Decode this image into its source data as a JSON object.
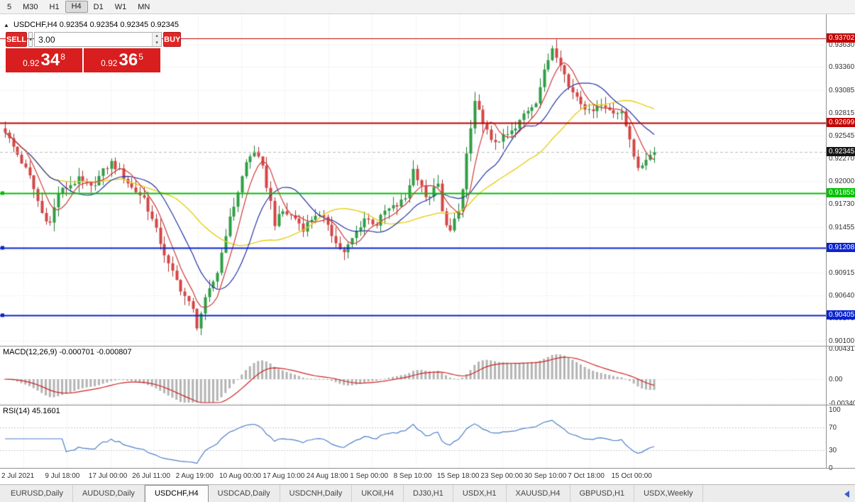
{
  "toolbar": {
    "items": [
      "5",
      "M30",
      "H1",
      "H4",
      "D1",
      "W1",
      "MN"
    ],
    "active": "H4"
  },
  "icons": {
    "chevron_down": "▾",
    "chevron_up": "▴"
  },
  "chart_header": {
    "collapse_icon": "▲",
    "title": "USDCHF,H4 0.92354 0.92354 0.92345 0.92345"
  },
  "trade_widget": {
    "sell_label": "SELL",
    "buy_label": "BUY",
    "volume": "3.00",
    "sell_price": {
      "base": "0.92",
      "big": "34",
      "sup": "8"
    },
    "buy_price": {
      "base": "0.92",
      "big": "36",
      "sup": "5"
    }
  },
  "chart_data": {
    "type": "candlestick",
    "symbol": "USDCHF",
    "timeframe": "H4",
    "ohlc_display": [
      "0.92354",
      "0.92354",
      "0.92345",
      "0.92345"
    ],
    "current_price": 0.92345,
    "current_price_label": "0.92345",
    "y_range": [
      0.9004,
      0.9399
    ],
    "y_ticks": [
      "0.93630",
      "0.93360",
      "0.93085",
      "0.92815",
      "0.92545",
      "0.92270",
      "0.92000",
      "0.91730",
      "0.91455",
      "0.91185",
      "0.90915",
      "0.90640",
      "0.90370",
      "0.90100"
    ],
    "x_ticks": [
      "2 Jul 2021",
      "9 Jul 18:00",
      "17 Jul 00:00",
      "26 Jul 11:00",
      "2 Aug 19:00",
      "10 Aug 00:00",
      "17 Aug 10:00",
      "24 Aug 18:00",
      "1 Sep 00:00",
      "8 Sep 10:00",
      "15 Sep 18:00",
      "23 Sep 00:00",
      "30 Sep 10:00",
      "7 Oct 18:00",
      "15 Oct 00:00"
    ],
    "horizontal_lines": [
      {
        "label": "0.93702",
        "price": 0.93702,
        "color": "#c00000",
        "width": 1,
        "marker": false
      },
      {
        "label": "0.92699",
        "price": 0.92699,
        "color": "#c00000",
        "width": 2,
        "marker": false
      },
      {
        "label": "0.91855",
        "price": 0.91855,
        "color": "#00c000",
        "width": 2,
        "marker": true
      },
      {
        "label": "0.91208",
        "price": 0.91208,
        "color": "#0b24cc",
        "width": 2,
        "marker": true
      },
      {
        "label": "0.90405",
        "price": 0.90405,
        "color": "#0b24cc",
        "width": 2,
        "marker": true
      }
    ],
    "candle_count": 160,
    "wick_amplitude": 0.0011,
    "close_anchors": [
      [
        0,
        0.9258
      ],
      [
        3,
        0.9232
      ],
      [
        6,
        0.9205
      ],
      [
        9,
        0.9162
      ],
      [
        11,
        0.915
      ],
      [
        13,
        0.9186
      ],
      [
        16,
        0.9196
      ],
      [
        18,
        0.9202
      ],
      [
        21,
        0.9192
      ],
      [
        24,
        0.9212
      ],
      [
        26,
        0.9222
      ],
      [
        28,
        0.9212
      ],
      [
        31,
        0.9192
      ],
      [
        34,
        0.918
      ],
      [
        37,
        0.9141
      ],
      [
        40,
        0.91
      ],
      [
        43,
        0.9072
      ],
      [
        46,
        0.9046
      ],
      [
        47,
        0.9028
      ],
      [
        49,
        0.9058
      ],
      [
        52,
        0.9092
      ],
      [
        54,
        0.9138
      ],
      [
        57,
        0.9188
      ],
      [
        59,
        0.9222
      ],
      [
        61,
        0.9237
      ],
      [
        63,
        0.9215
      ],
      [
        65,
        0.9175
      ],
      [
        66,
        0.915
      ],
      [
        68,
        0.9164
      ],
      [
        71,
        0.9156
      ],
      [
        73,
        0.9144
      ],
      [
        76,
        0.9161
      ],
      [
        79,
        0.915
      ],
      [
        81,
        0.9126
      ],
      [
        83,
        0.9114
      ],
      [
        86,
        0.914
      ],
      [
        88,
        0.9156
      ],
      [
        91,
        0.9149
      ],
      [
        93,
        0.9164
      ],
      [
        96,
        0.9171
      ],
      [
        98,
        0.918
      ],
      [
        100,
        0.9214
      ],
      [
        102,
        0.9196
      ],
      [
        103,
        0.9178
      ],
      [
        106,
        0.9196
      ],
      [
        107,
        0.9162
      ],
      [
        109,
        0.914
      ],
      [
        111,
        0.9164
      ],
      [
        112,
        0.919
      ],
      [
        113,
        0.9232
      ],
      [
        115,
        0.9292
      ],
      [
        117,
        0.9272
      ],
      [
        119,
        0.9246
      ],
      [
        122,
        0.9252
      ],
      [
        125,
        0.9262
      ],
      [
        127,
        0.928
      ],
      [
        130,
        0.9296
      ],
      [
        132,
        0.933
      ],
      [
        134,
        0.936
      ],
      [
        136,
        0.9342
      ],
      [
        138,
        0.9312
      ],
      [
        140,
        0.9302
      ],
      [
        143,
        0.9282
      ],
      [
        145,
        0.9292
      ],
      [
        148,
        0.9286
      ],
      [
        151,
        0.928
      ],
      [
        153,
        0.9252
      ],
      [
        155,
        0.9212
      ],
      [
        157,
        0.9228
      ],
      [
        159,
        0.92345
      ]
    ],
    "ma_periods": {
      "fast": 6,
      "medium": 14,
      "slow": 30
    }
  },
  "macd_panel": {
    "label": "MACD(12,26,9) -0.000701 -0.000807",
    "params": [
      12,
      26,
      9
    ],
    "values": [
      -0.000701,
      -0.000807
    ],
    "axis_labels": [
      "0.00431",
      "0.00",
      "-0.00340"
    ],
    "levels": [
      0.00431,
      0,
      -0.0034
    ]
  },
  "rsi_panel": {
    "label": "RSI(14) 45.1601",
    "period": 14,
    "value": 45.1601,
    "axis_labels": [
      "100",
      "70",
      "30",
      "0"
    ],
    "levels": [
      100,
      70,
      30,
      0
    ]
  },
  "tab_bar": {
    "tabs": [
      "EURUSD,Daily",
      "AUDUSD,Daily",
      "USDCHF,H4",
      "USDCAD,Daily",
      "USDCNH,Daily",
      "UKOil,H4",
      "DJ30,H1",
      "USDX,H1",
      "XAUUSD,H4",
      "GBPUSD,H1",
      "USDX,Weekly"
    ],
    "active": "USDCHF,H4"
  },
  "colors": {
    "up": "#2f9e44",
    "up_dark": "#1e7d34",
    "down": "#d64545",
    "down_dark": "#a83232",
    "ma_fast": "#cf3a3a",
    "ma_med": "#2433a6",
    "ma_slow": "#e8cf17",
    "macd_signal": "#d02020",
    "macd_hist": "#b3b3b3",
    "rsi_line": "#4c7fc9",
    "trade_red": "#e02626",
    "price_panel_red": "#d81e1e",
    "current_badge": "#151515"
  }
}
